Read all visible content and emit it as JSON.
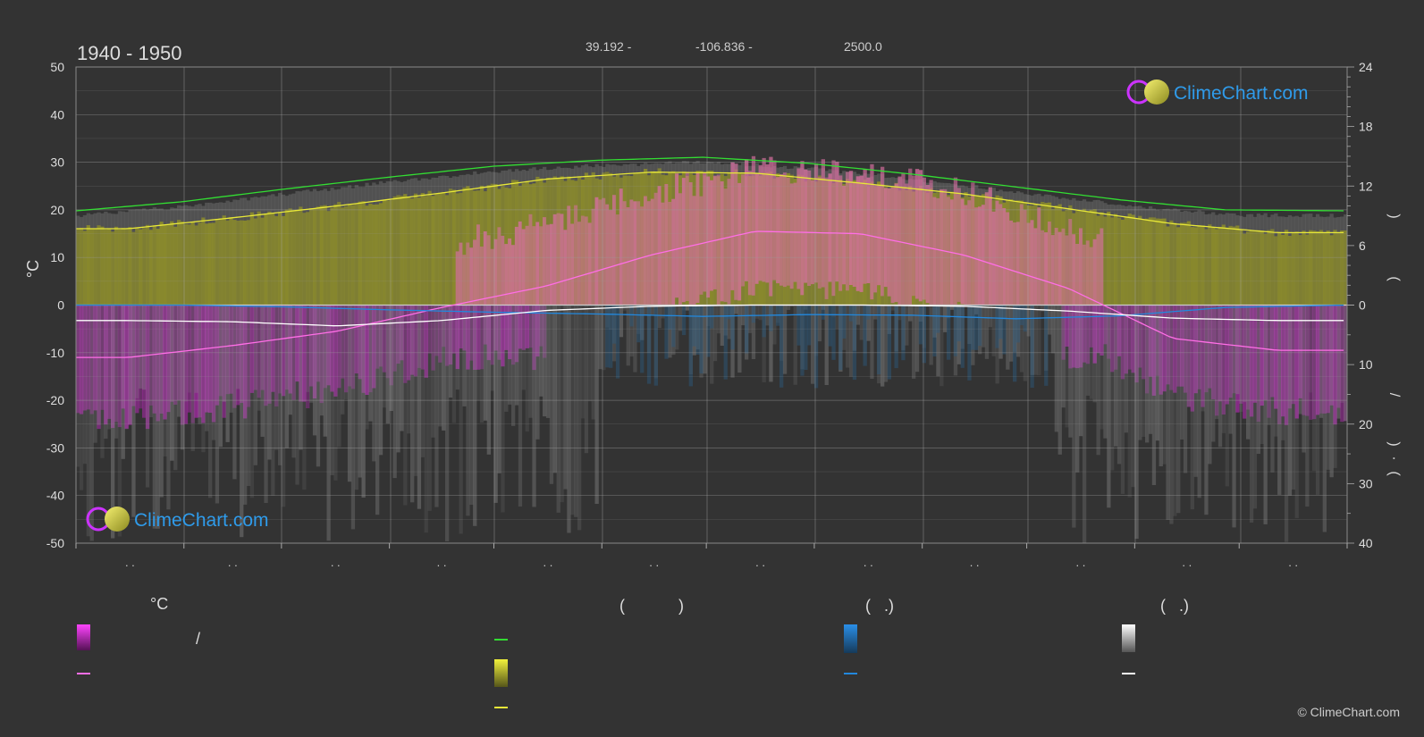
{
  "header": {
    "period": "1940 - 1950",
    "lat": "39.192 -",
    "lon": "-106.836 -",
    "elev": "2500.0"
  },
  "left_axis_unit": "°C",
  "right_axis_chars": [
    ")",
    "(",
    "/",
    ")",
    "·",
    "("
  ],
  "legend": {
    "col1_title": "°C",
    "col2_title": "(            )",
    "col3_title": "(   .)",
    "col4_title": "(   .)",
    "slash": "/"
  },
  "logo": "ClimeChart.com",
  "copyright": "© ClimeChart.com",
  "colors": {
    "daylight": "#33dd33",
    "sunshine": "#e8e838",
    "max_temp": "#ff6ee6",
    "rain": "#2288dd",
    "snow": "#ffffff",
    "magenta_band": "#ee22ee",
    "olive_band": "#8c8c2a",
    "pink_band": "#d76fa0",
    "grey_band": "#6a6a6a"
  },
  "chart_data": {
    "type": "area",
    "x_tick_labels": [
      ". .",
      ". .",
      ". .",
      ". .",
      ". .",
      ". .",
      ". .",
      ". .",
      ". .",
      ". .",
      ". .",
      ". ."
    ],
    "y_left": {
      "label": "°C",
      "ylim": [
        -50,
        50
      ],
      "ticks": [
        50,
        40,
        30,
        20,
        10,
        0,
        -10,
        -20,
        -30,
        -40,
        -50
      ]
    },
    "y_right_top": {
      "ylim": [
        0,
        24
      ],
      "ticks": [
        24,
        18,
        12,
        6,
        0
      ]
    },
    "y_right_bottom": {
      "ylim": [
        0,
        40
      ],
      "ticks": [
        0,
        10,
        20,
        30,
        40
      ]
    },
    "grid": true,
    "series": [
      {
        "key": "daylight",
        "axis": "right_top",
        "x": [
          0,
          30,
          60,
          90,
          120,
          150,
          180,
          210,
          240,
          270,
          300,
          330,
          365
        ],
        "values": [
          9.5,
          10.4,
          11.7,
          12.9,
          14.0,
          14.6,
          14.9,
          14.3,
          13.2,
          11.9,
          10.6,
          9.6,
          9.5
        ]
      },
      {
        "key": "sunshine",
        "axis": "right_top",
        "x": [
          0,
          15,
          45,
          75,
          105,
          135,
          165,
          195,
          225,
          255,
          285,
          315,
          345,
          365
        ],
        "values": [
          7.7,
          7.7,
          8.8,
          10.0,
          11.3,
          12.7,
          13.4,
          13.3,
          12.3,
          11.2,
          9.7,
          8.2,
          7.3,
          7.3
        ]
      },
      {
        "key": "max_temp_line",
        "axis": "left",
        "x": [
          0,
          15,
          45,
          75,
          105,
          135,
          165,
          195,
          225,
          255,
          285,
          315,
          345,
          365
        ],
        "values": [
          -11,
          -11,
          -8.5,
          -5.5,
          -0.5,
          4,
          10.5,
          15.5,
          15,
          10.5,
          3.5,
          -7,
          -9.5,
          -9.5
        ]
      },
      {
        "key": "snow_line",
        "axis": "right_bottom",
        "x": [
          0,
          15,
          45,
          75,
          105,
          135,
          165,
          195,
          225,
          255,
          285,
          315,
          345,
          365
        ],
        "values": [
          2.6,
          2.6,
          2.8,
          3.5,
          2.6,
          0.9,
          0.2,
          0.0,
          0.0,
          0.2,
          1.0,
          2.2,
          2.6,
          2.6
        ]
      },
      {
        "key": "rain_line",
        "axis": "right_bottom",
        "x": [
          0,
          30,
          60,
          90,
          120,
          150,
          180,
          210,
          240,
          270,
          300,
          330,
          365
        ],
        "values": [
          0.0,
          0.0,
          0.3,
          0.8,
          1.2,
          1.5,
          1.9,
          1.6,
          1.7,
          2.3,
          1.8,
          0.4,
          0.0
        ]
      }
    ]
  }
}
